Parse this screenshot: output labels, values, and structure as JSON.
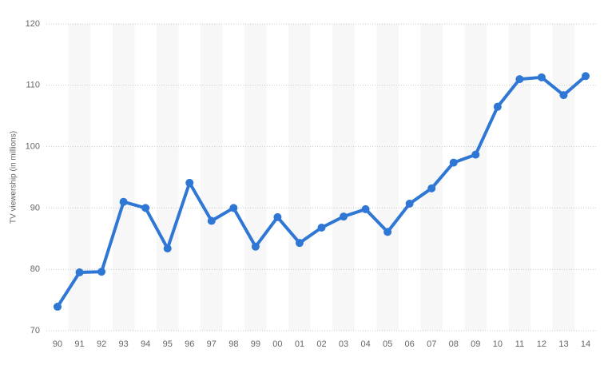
{
  "chart_data": {
    "type": "line",
    "y_label": "TV viewership (in millions)",
    "categories": [
      "90",
      "91",
      "92",
      "93",
      "94",
      "95",
      "96",
      "97",
      "98",
      "99",
      "00",
      "01",
      "02",
      "03",
      "04",
      "05",
      "06",
      "07",
      "08",
      "09",
      "10",
      "11",
      "12",
      "13",
      "14"
    ],
    "series": [
      {
        "name": "TV viewership",
        "color": "#2f77d4",
        "values": [
          73.9,
          79.5,
          79.6,
          91.0,
          90.0,
          83.4,
          94.1,
          87.9,
          90.0,
          83.7,
          88.5,
          84.3,
          86.8,
          88.6,
          89.8,
          86.1,
          90.7,
          93.2,
          97.4,
          98.7,
          106.5,
          111.0,
          111.3,
          108.4,
          111.5
        ]
      }
    ],
    "ylim": [
      70,
      120
    ],
    "yticks": [
      70,
      80,
      90,
      100,
      110,
      120
    ],
    "grid": true
  }
}
